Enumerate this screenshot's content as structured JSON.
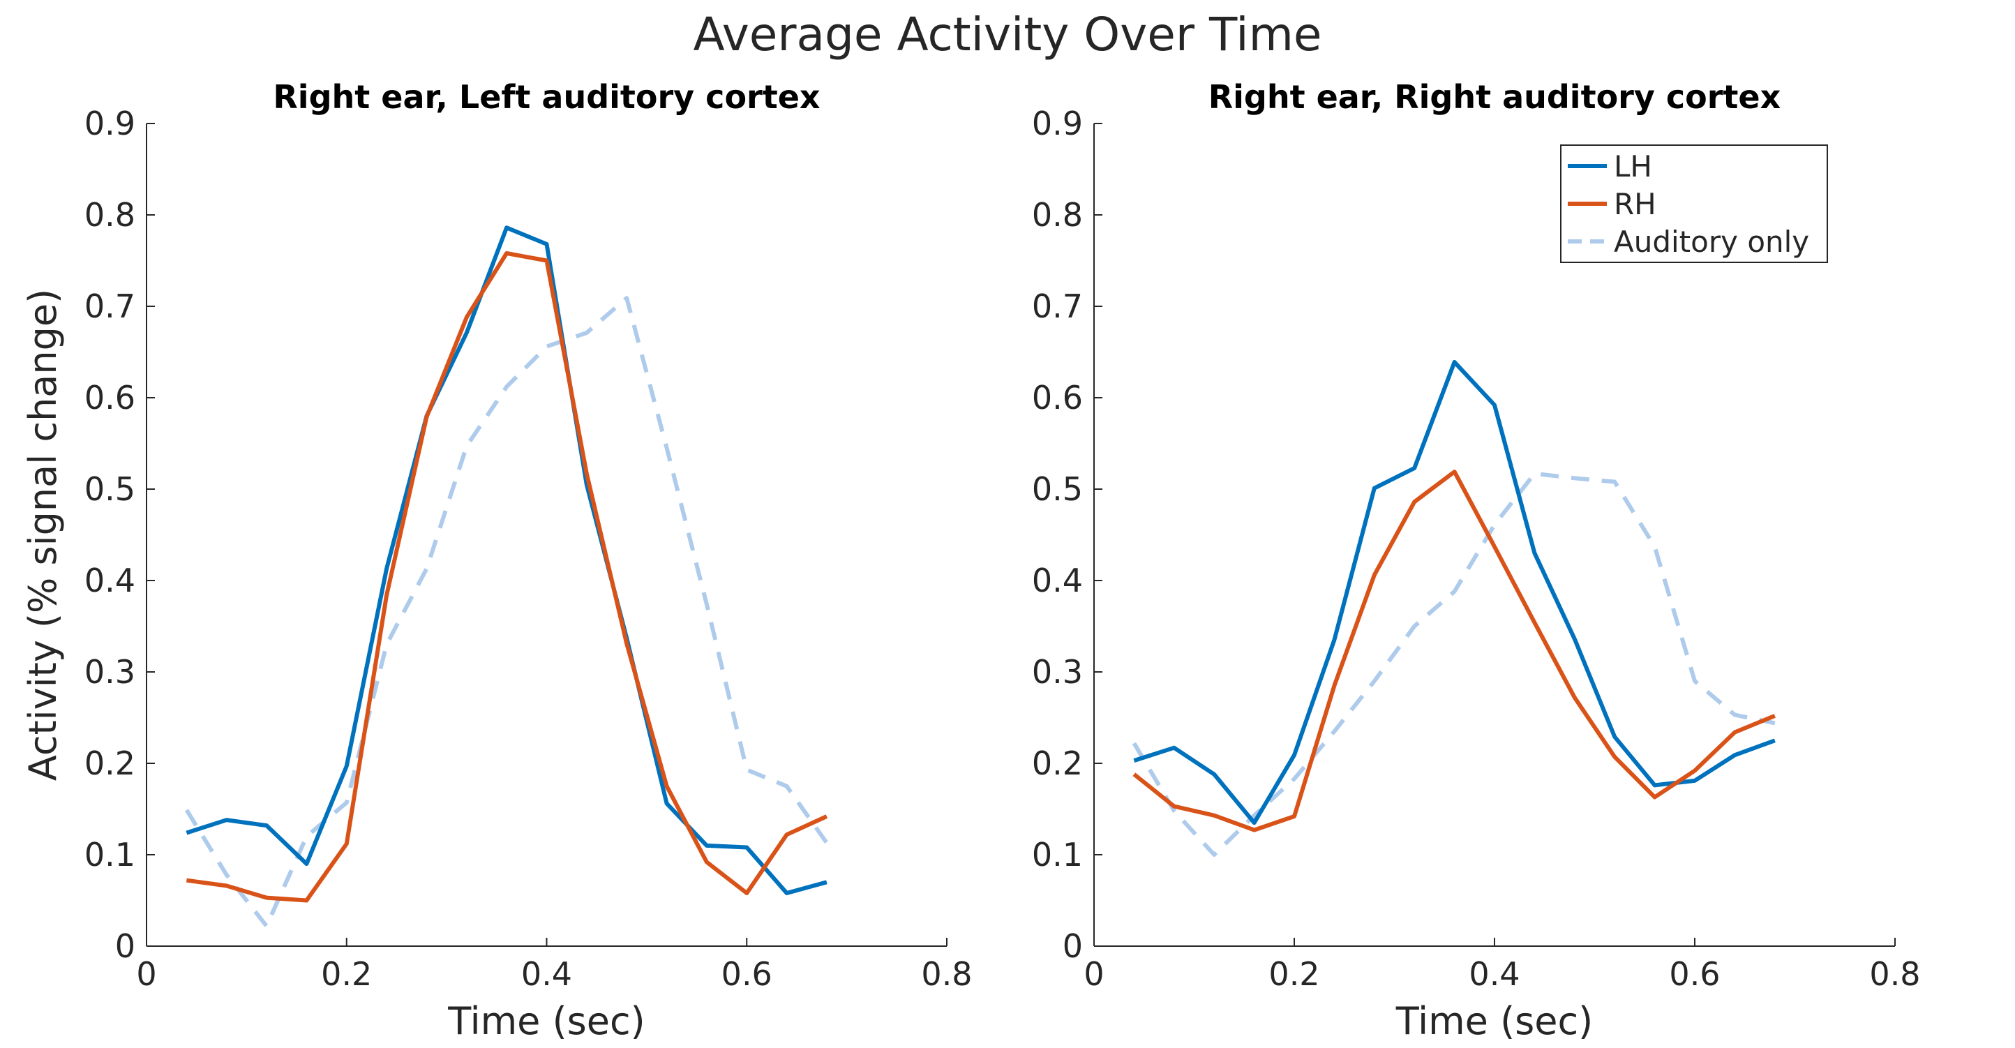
{
  "figure": {
    "title": "Average Activity Over Time"
  },
  "colors": {
    "LH": "#0072bd",
    "RH": "#d95319",
    "Auditory only": "#aecbec"
  },
  "chart_data": [
    {
      "type": "line",
      "title": "Right ear, Left auditory cortex",
      "xlabel": "Time (sec)",
      "ylabel": "Activity (% signal change)",
      "xlim": [
        0,
        0.8
      ],
      "ylim": [
        0,
        0.9
      ],
      "xticks": [
        0,
        0.2,
        0.4,
        0.6,
        0.8
      ],
      "xtick_labels": [
        "0",
        "0.2",
        "0.4",
        "0.6",
        "0.8"
      ],
      "yticks": [
        0,
        0.1,
        0.2,
        0.3,
        0.4,
        0.5,
        0.6,
        0.7,
        0.8,
        0.9
      ],
      "ytick_labels": [
        "0",
        "0.1",
        "0.2",
        "0.3",
        "0.4",
        "0.5",
        "0.6",
        "0.7",
        "0.8",
        "0.9"
      ],
      "grid": false,
      "legend": false,
      "x": [
        0.04,
        0.08,
        0.12,
        0.16,
        0.2,
        0.24,
        0.28,
        0.32,
        0.36,
        0.4,
        0.44,
        0.48,
        0.52,
        0.56,
        0.6,
        0.64,
        0.68
      ],
      "series": [
        {
          "name": "LH",
          "style": "solid",
          "values": [
            0.124,
            0.138,
            0.132,
            0.09,
            0.197,
            0.413,
            0.58,
            0.671,
            0.786,
            0.768,
            0.505,
            0.337,
            0.156,
            0.11,
            0.108,
            0.058,
            0.07
          ]
        },
        {
          "name": "RH",
          "style": "solid",
          "values": [
            0.072,
            0.066,
            0.053,
            0.05,
            0.112,
            0.384,
            0.579,
            0.688,
            0.758,
            0.75,
            0.517,
            0.331,
            0.175,
            0.092,
            0.058,
            0.122,
            0.142
          ]
        },
        {
          "name": "Auditory only",
          "style": "dashed",
          "values": [
            0.149,
            0.078,
            0.022,
            0.12,
            0.157,
            0.33,
            0.413,
            0.547,
            0.612,
            0.656,
            0.671,
            0.709,
            0.545,
            0.374,
            0.193,
            0.175,
            0.113
          ]
        }
      ]
    },
    {
      "type": "line",
      "title": "Right ear, Right auditory cortex",
      "xlabel": "Time (sec)",
      "ylabel": "",
      "xlim": [
        0,
        0.8
      ],
      "ylim": [
        0,
        0.9
      ],
      "xticks": [
        0,
        0.2,
        0.4,
        0.6,
        0.8
      ],
      "xtick_labels": [
        "0",
        "0.2",
        "0.4",
        "0.6",
        "0.8"
      ],
      "yticks": [
        0,
        0.1,
        0.2,
        0.3,
        0.4,
        0.5,
        0.6,
        0.7,
        0.8,
        0.9
      ],
      "ytick_labels": [
        "0",
        "0.1",
        "0.2",
        "0.3",
        "0.4",
        "0.5",
        "0.6",
        "0.7",
        "0.8",
        "0.9"
      ],
      "grid": false,
      "legend": true,
      "legend_position": "top-right",
      "x": [
        0.04,
        0.08,
        0.12,
        0.16,
        0.2,
        0.24,
        0.28,
        0.32,
        0.36,
        0.4,
        0.44,
        0.48,
        0.52,
        0.56,
        0.6,
        0.64,
        0.68
      ],
      "series": [
        {
          "name": "LH",
          "style": "solid",
          "values": [
            0.203,
            0.217,
            0.188,
            0.135,
            0.209,
            0.335,
            0.501,
            0.523,
            0.639,
            0.592,
            0.43,
            0.336,
            0.229,
            0.176,
            0.181,
            0.209,
            0.225
          ]
        },
        {
          "name": "RH",
          "style": "solid",
          "values": [
            0.188,
            0.153,
            0.143,
            0.127,
            0.142,
            0.285,
            0.406,
            0.486,
            0.519,
            0.437,
            0.354,
            0.272,
            0.207,
            0.163,
            0.192,
            0.234,
            0.252
          ]
        },
        {
          "name": "Auditory only",
          "style": "dashed",
          "values": [
            0.222,
            0.148,
            0.1,
            0.143,
            0.183,
            0.235,
            0.29,
            0.35,
            0.388,
            0.461,
            0.517,
            0.512,
            0.508,
            0.437,
            0.29,
            0.253,
            0.244
          ]
        }
      ]
    }
  ]
}
